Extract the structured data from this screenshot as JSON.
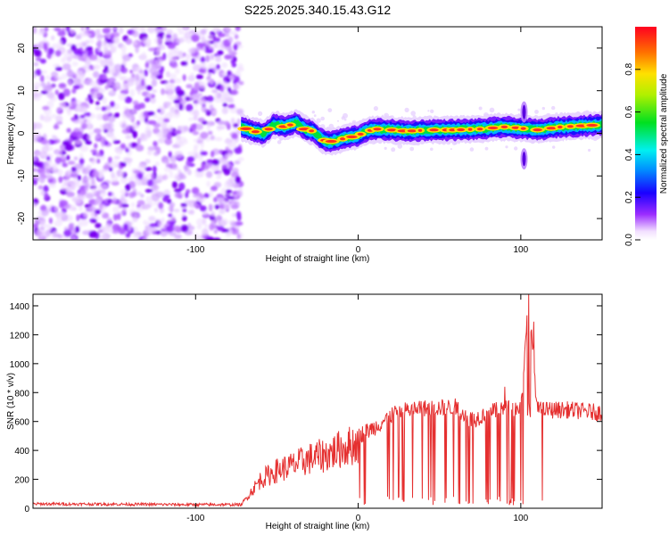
{
  "title": "S225.2025.340.15.43.G12",
  "chart_data": [
    {
      "type": "heatmap",
      "xlabel": "Height of straight line (km)",
      "ylabel": "Frequency (Hz)",
      "xlim": [
        -200,
        150
      ],
      "ylim": [
        -25,
        25
      ],
      "xticks": [
        -100,
        0,
        100
      ],
      "yticks": [
        -20,
        -10,
        0,
        10,
        20
      ],
      "colorbar": {
        "label": "Normalized spectral amplitude",
        "range": [
          0,
          1
        ],
        "ticks": [
          0.0,
          0.2,
          0.4,
          0.6,
          0.8
        ]
      },
      "noise_region_x": [
        -200,
        -72
      ],
      "signal_ridge": {
        "x": [
          -72,
          -65,
          -58,
          -52,
          -45,
          -38,
          -33,
          -28,
          -22,
          -18,
          -12,
          -6,
          0,
          5,
          12,
          20,
          30,
          45,
          60,
          75,
          90,
          100,
          110,
          125,
          140,
          150
        ],
        "freq_hz": [
          1.5,
          0.5,
          0.0,
          2.0,
          1.5,
          2.5,
          1.0,
          0.5,
          -1.5,
          -2.0,
          -1.5,
          -1.0,
          -0.5,
          0.5,
          1.0,
          0.8,
          0.5,
          0.8,
          0.8,
          1.0,
          1.5,
          1.2,
          0.8,
          1.5,
          1.8,
          2.0
        ]
      },
      "transient_feature": {
        "x": 102,
        "freq_range": [
          -8,
          8
        ]
      }
    },
    {
      "type": "line",
      "xlabel": "Height of straight line (km)",
      "ylabel": "SNR (10 * v/v)",
      "xlim": [
        -200,
        150
      ],
      "ylim": [
        0,
        1480
      ],
      "xticks": [
        -100,
        0,
        100
      ],
      "yticks": [
        0,
        200,
        400,
        600,
        800,
        1000,
        1200,
        1400
      ],
      "series": [
        {
          "name": "SNR",
          "color": "#e53030",
          "x": [
            -200,
            -150,
            -100,
            -72,
            -65,
            -60,
            -50,
            -40,
            -30,
            -20,
            -10,
            -5,
            0,
            10,
            20,
            30,
            40,
            50,
            60,
            70,
            80,
            90,
            100,
            105,
            110,
            120,
            130,
            140,
            150
          ],
          "y": [
            30,
            28,
            25,
            25,
            140,
            220,
            290,
            330,
            380,
            410,
            460,
            480,
            500,
            560,
            640,
            680,
            690,
            695,
            700,
            610,
            660,
            690,
            690,
            1480,
            680,
            680,
            680,
            670,
            660
          ],
          "dropouts": {
            "x_range": [
              0,
              114
            ],
            "min_y": 0
          },
          "spikes": [
            {
              "x": 105,
              "y": 1480
            },
            {
              "x": 108,
              "y": 1290
            },
            {
              "x": 90,
              "y": 840
            }
          ]
        }
      ]
    }
  ]
}
